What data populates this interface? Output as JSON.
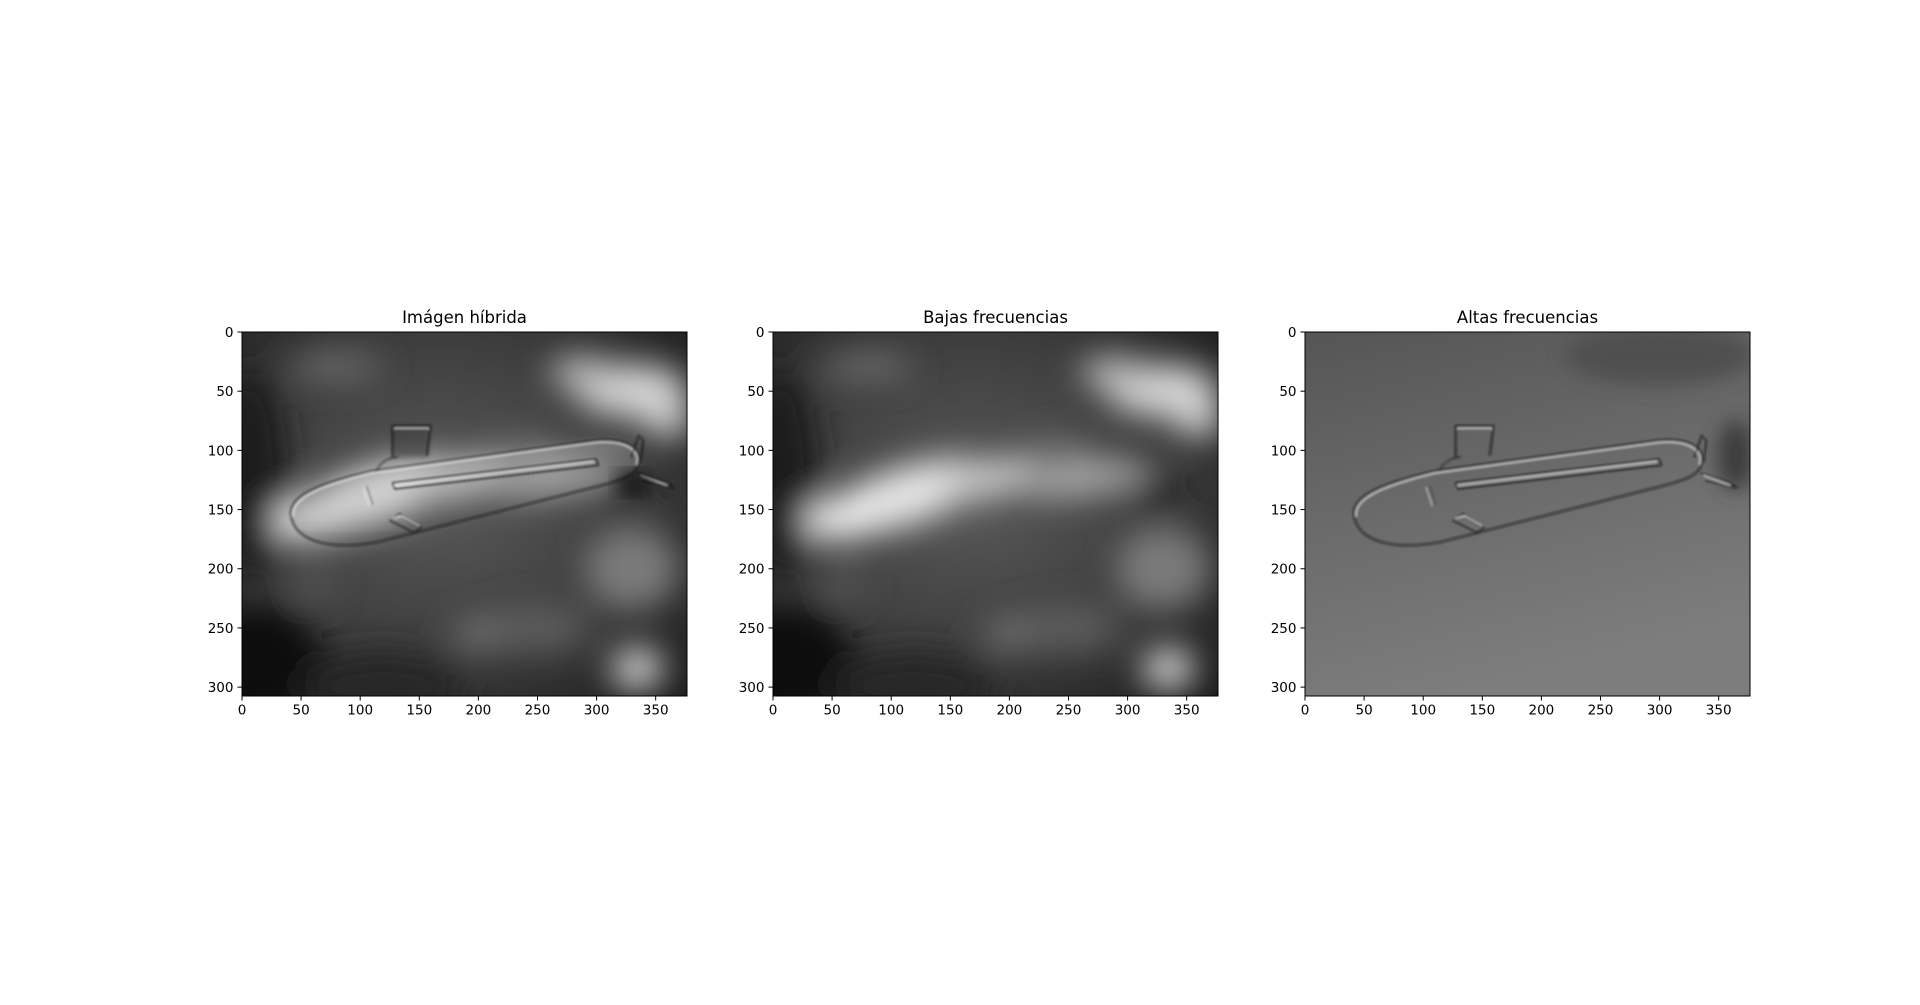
{
  "chart_data": [
    {
      "type": "image",
      "title": "Imágen híbrida",
      "image_shape": [
        308,
        377
      ],
      "xlim": [
        0,
        376.5
      ],
      "ylim": [
        307.5,
        0
      ],
      "xticks": [
        0,
        50,
        100,
        150,
        200,
        250,
        300,
        350
      ],
      "yticks": [
        0,
        50,
        100,
        150,
        200,
        250,
        300
      ],
      "colormap": "gray",
      "content": "submarine",
      "panel_style": "hybrid"
    },
    {
      "type": "image",
      "title": "Bajas frecuencias",
      "image_shape": [
        308,
        377
      ],
      "xlim": [
        0,
        376.5
      ],
      "ylim": [
        307.5,
        0
      ],
      "xticks": [
        0,
        50,
        100,
        150,
        200,
        250,
        300,
        350
      ],
      "yticks": [
        0,
        50,
        100,
        150,
        200,
        250,
        300
      ],
      "colormap": "gray",
      "content": "blurred fish",
      "panel_style": "low"
    },
    {
      "type": "image",
      "title": "Altas frecuencias",
      "image_shape": [
        308,
        377
      ],
      "xlim": [
        0,
        376.5
      ],
      "ylim": [
        307.5,
        0
      ],
      "xticks": [
        0,
        50,
        100,
        150,
        200,
        250,
        300,
        350
      ],
      "yticks": [
        0,
        50,
        100,
        150,
        200,
        250,
        300
      ],
      "colormap": "gray",
      "content": "submarine edges",
      "panel_style": "high"
    }
  ]
}
